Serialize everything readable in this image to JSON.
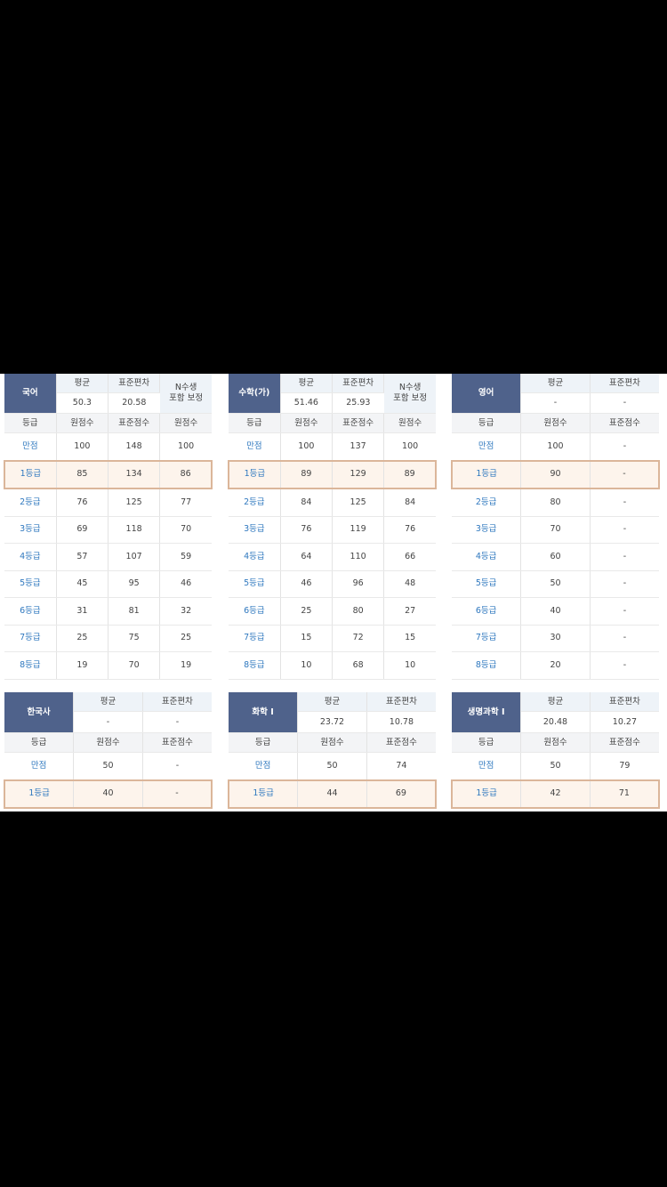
{
  "colors": {
    "subject_header": "#4f628b",
    "grade_text": "#2f78bf",
    "highlight_bg": "#fdf4ec",
    "highlight_border": "#dbb69a"
  },
  "tables": [
    {
      "subject": "국어",
      "stats_labels": [
        "평균",
        "표준편차"
      ],
      "stats_values": [
        "50.3",
        "20.58"
      ],
      "extra_header": "N수생\n포함 보정",
      "col_headers": [
        "등급",
        "원점수",
        "표준점수",
        "원점수"
      ],
      "rows": [
        [
          "만점",
          "100",
          "148",
          "100"
        ],
        [
          "1등급",
          "85",
          "134",
          "86"
        ],
        [
          "2등급",
          "76",
          "125",
          "77"
        ],
        [
          "3등급",
          "69",
          "118",
          "70"
        ],
        [
          "4등급",
          "57",
          "107",
          "59"
        ],
        [
          "5등급",
          "45",
          "95",
          "46"
        ],
        [
          "6등급",
          "31",
          "81",
          "32"
        ],
        [
          "7등급",
          "25",
          "75",
          "25"
        ],
        [
          "8등급",
          "19",
          "70",
          "19"
        ]
      ]
    },
    {
      "subject": "수학(가)",
      "stats_labels": [
        "평균",
        "표준편차"
      ],
      "stats_values": [
        "51.46",
        "25.93"
      ],
      "extra_header": "N수생\n포함 보정",
      "col_headers": [
        "등급",
        "원점수",
        "표준점수",
        "원점수"
      ],
      "rows": [
        [
          "만점",
          "100",
          "137",
          "100"
        ],
        [
          "1등급",
          "89",
          "129",
          "89"
        ],
        [
          "2등급",
          "84",
          "125",
          "84"
        ],
        [
          "3등급",
          "76",
          "119",
          "76"
        ],
        [
          "4등급",
          "64",
          "110",
          "66"
        ],
        [
          "5등급",
          "46",
          "96",
          "48"
        ],
        [
          "6등급",
          "25",
          "80",
          "27"
        ],
        [
          "7등급",
          "15",
          "72",
          "15"
        ],
        [
          "8등급",
          "10",
          "68",
          "10"
        ]
      ]
    },
    {
      "subject": "영어",
      "stats_labels": [
        "평균",
        "표준편차"
      ],
      "stats_values": [
        "-",
        "-"
      ],
      "col_headers": [
        "등급",
        "원점수",
        "표준점수"
      ],
      "rows": [
        [
          "만점",
          "100",
          "-"
        ],
        [
          "1등급",
          "90",
          "-"
        ],
        [
          "2등급",
          "80",
          "-"
        ],
        [
          "3등급",
          "70",
          "-"
        ],
        [
          "4등급",
          "60",
          "-"
        ],
        [
          "5등급",
          "50",
          "-"
        ],
        [
          "6등급",
          "40",
          "-"
        ],
        [
          "7등급",
          "30",
          "-"
        ],
        [
          "8등급",
          "20",
          "-"
        ]
      ]
    },
    {
      "subject": "한국사",
      "stats_labels": [
        "평균",
        "표준편차"
      ],
      "stats_values": [
        "-",
        "-"
      ],
      "col_headers": [
        "등급",
        "원점수",
        "표준점수"
      ],
      "rows": [
        [
          "만점",
          "50",
          "-"
        ],
        [
          "1등급",
          "40",
          "-"
        ]
      ]
    },
    {
      "subject": "화학 I",
      "stats_labels": [
        "평균",
        "표준편차"
      ],
      "stats_values": [
        "23.72",
        "10.78"
      ],
      "col_headers": [
        "등급",
        "원점수",
        "표준점수"
      ],
      "rows": [
        [
          "만점",
          "50",
          "74"
        ],
        [
          "1등급",
          "44",
          "69"
        ]
      ]
    },
    {
      "subject": "생명과학 I",
      "stats_labels": [
        "평균",
        "표준편차"
      ],
      "stats_values": [
        "20.48",
        "10.27"
      ],
      "col_headers": [
        "등급",
        "원점수",
        "표준점수"
      ],
      "rows": [
        [
          "만점",
          "50",
          "79"
        ],
        [
          "1등급",
          "42",
          "71"
        ]
      ]
    }
  ]
}
